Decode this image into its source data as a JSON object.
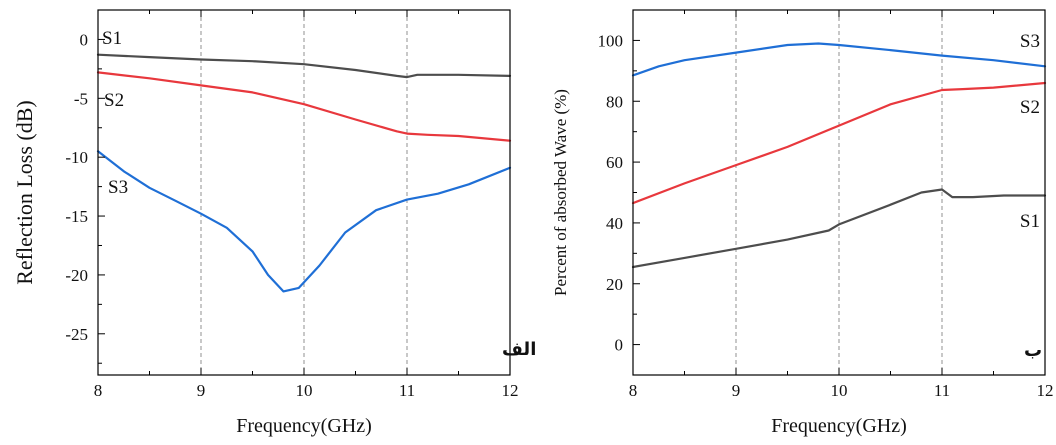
{
  "chart_data": [
    {
      "type": "line",
      "panel_label": "الف",
      "xlabel": "Frequency(GHz)",
      "ylabel": "Reflection Loss (dB)",
      "xlim": [
        8,
        12
      ],
      "ylim": [
        -28.5,
        2.5
      ],
      "xticks": [
        8,
        9,
        10,
        11,
        12
      ],
      "yticks": [
        0,
        -5,
        -10,
        -15,
        -20,
        -25
      ],
      "grid": "vertical dashed at major x ticks",
      "series": [
        {
          "name": "S1",
          "color": "#4d4d4d",
          "x": [
            8,
            8.5,
            9,
            9.5,
            10,
            10.5,
            10.9,
            11,
            11.1,
            11.5,
            12
          ],
          "y": [
            -1.3,
            -1.5,
            -1.7,
            -1.85,
            -2.1,
            -2.6,
            -3.1,
            -3.2,
            -3.0,
            -3.0,
            -3.1
          ]
        },
        {
          "name": "S2",
          "color": "#e8383d",
          "x": [
            8,
            8.5,
            9,
            9.5,
            10,
            10.5,
            10.9,
            11,
            11.2,
            11.5,
            12
          ],
          "y": [
            -2.8,
            -3.3,
            -3.9,
            -4.5,
            -5.5,
            -6.8,
            -7.8,
            -8.0,
            -8.1,
            -8.2,
            -8.6
          ]
        },
        {
          "name": "S3",
          "color": "#1f6fd6",
          "x": [
            8,
            8.25,
            8.5,
            8.75,
            9,
            9.25,
            9.5,
            9.65,
            9.8,
            9.95,
            10.15,
            10.4,
            10.7,
            11,
            11.3,
            11.6,
            12
          ],
          "y": [
            -9.5,
            -11.2,
            -12.6,
            -13.7,
            -14.8,
            -16.0,
            -18.0,
            -20.0,
            -21.4,
            -21.1,
            -19.2,
            -16.4,
            -14.5,
            -13.6,
            -13.1,
            -12.3,
            -10.9
          ]
        }
      ]
    },
    {
      "type": "line",
      "panel_label": "ب",
      "xlabel": "Frequency(GHz)",
      "ylabel": "Percent of absorbed Wave (%)",
      "xlim": [
        8,
        12
      ],
      "ylim": [
        -10,
        110
      ],
      "xticks": [
        8,
        9,
        10,
        11,
        12
      ],
      "yticks": [
        0,
        20,
        40,
        60,
        80,
        100
      ],
      "grid": "vertical dashed at major x ticks",
      "series": [
        {
          "name": "S3",
          "color": "#1f6fd6",
          "x": [
            8,
            8.25,
            8.5,
            9,
            9.5,
            9.8,
            10,
            10.5,
            11,
            11.5,
            12
          ],
          "y": [
            88.5,
            91.5,
            93.5,
            96,
            98.5,
            99,
            98.5,
            96.8,
            95,
            93.5,
            91.5
          ]
        },
        {
          "name": "S2",
          "color": "#e8383d",
          "x": [
            8,
            8.5,
            9,
            9.5,
            10,
            10.5,
            11,
            11.2,
            11.5,
            12
          ],
          "y": [
            46.5,
            53,
            59,
            65,
            72,
            79,
            83.7,
            84,
            84.5,
            86
          ]
        },
        {
          "name": "S1",
          "color": "#4d4d4d",
          "x": [
            8,
            8.5,
            9,
            9.5,
            9.9,
            10,
            10.5,
            10.8,
            11,
            11.1,
            11.3,
            11.6,
            12
          ],
          "y": [
            25.5,
            28.5,
            31.5,
            34.5,
            37.5,
            39.5,
            46,
            50,
            51,
            48.5,
            48.5,
            49,
            49
          ]
        }
      ]
    }
  ]
}
